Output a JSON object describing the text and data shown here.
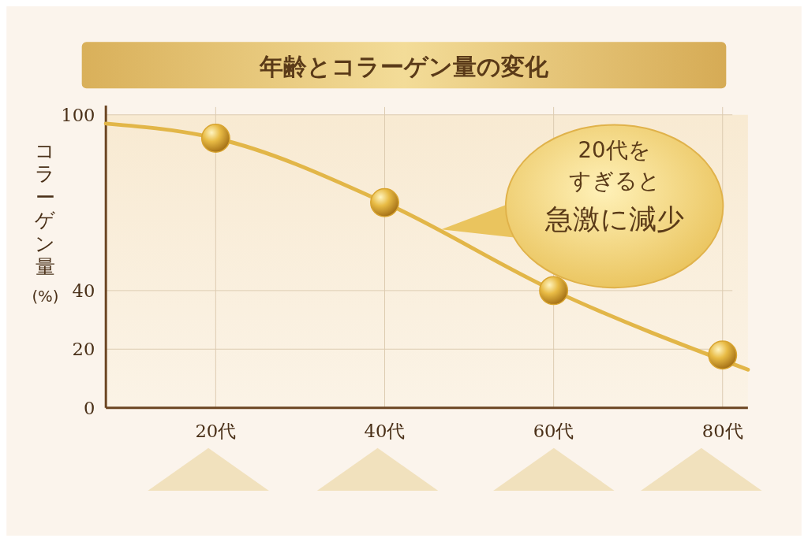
{
  "chart_data": {
    "type": "line",
    "title": "年齢とコラーゲン量の変化",
    "ylabel": "コラーゲン量(%)",
    "xlim": [
      7,
      83
    ],
    "xticks": [
      {
        "value": 20,
        "label": "20代"
      },
      {
        "value": 40,
        "label": "40代"
      },
      {
        "value": 60,
        "label": "60代"
      },
      {
        "value": 80,
        "label": "80代"
      }
    ],
    "ylim": [
      0,
      100
    ],
    "yticks": [
      0,
      20,
      40,
      100
    ],
    "grid": true,
    "series": [
      {
        "color": "#e2b648",
        "x": [
          7,
          20,
          40,
          60,
          83
        ],
        "values": [
          97,
          92,
          70,
          40,
          13
        ],
        "marker": "none"
      },
      {
        "type": "scatter",
        "color": "#d9a530",
        "x": [
          20,
          40,
          60,
          80
        ],
        "values": [
          92,
          70,
          40,
          18
        ],
        "marker": "circle"
      }
    ],
    "annotations": [
      "20代を",
      "すぎると",
      "急激に減少"
    ]
  }
}
